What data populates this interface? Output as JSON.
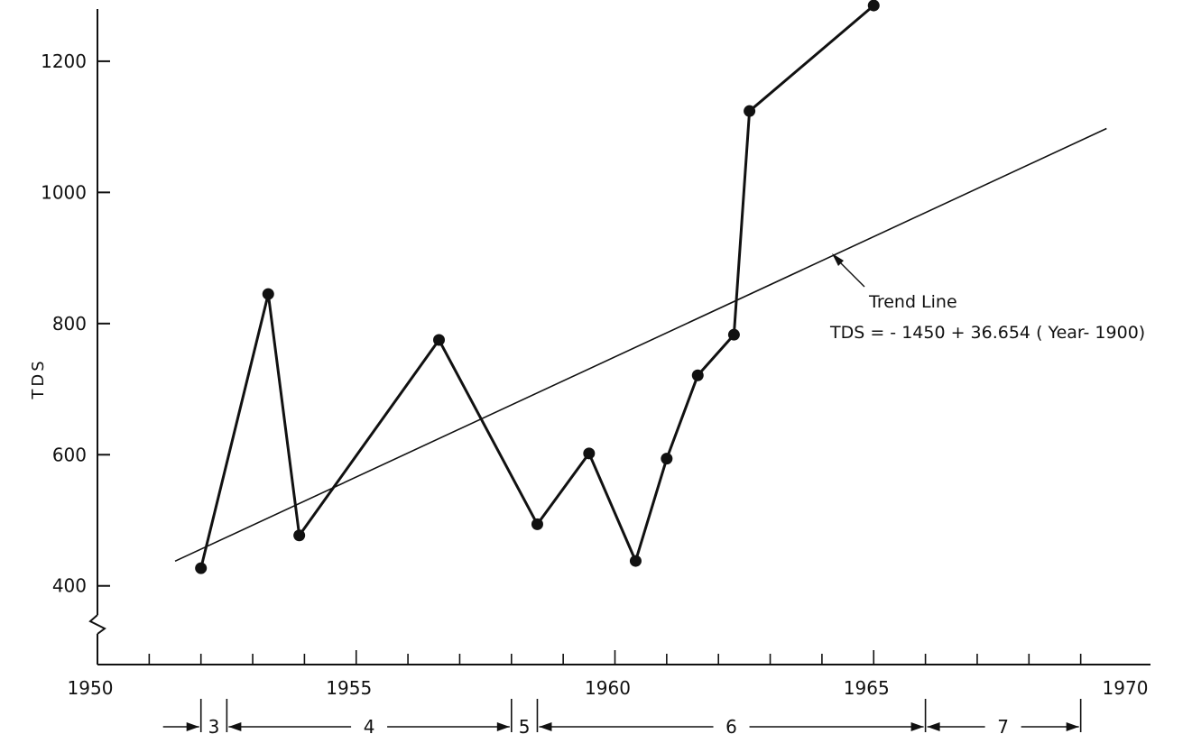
{
  "chart_data": {
    "type": "line",
    "title": "",
    "xlabel": "",
    "ylabel": "TDS",
    "x_ticks": [
      1950,
      1955,
      1960,
      1965,
      1970
    ],
    "y_ticks": [
      400,
      600,
      800,
      1000,
      1200
    ],
    "xlim": [
      1950,
      1970
    ],
    "ylim": [
      280,
      1270
    ],
    "y_axis_broken": true,
    "grid": false,
    "series": [
      {
        "name": "",
        "x": [
          1952.0,
          1953.3,
          1953.9,
          1956.6,
          1958.5,
          1959.5,
          1960.4,
          1961.0,
          1961.6,
          1962.3,
          1962.6,
          1965.0
        ],
        "y": [
          427,
          845,
          477,
          775,
          494,
          602,
          438,
          594,
          721,
          783,
          1124,
          1285
        ]
      }
    ],
    "trend_line": {
      "x_start": 1951.5,
      "x_end": 1969.5,
      "label": "Trend Line",
      "equation": "TDS = - 1450 + 36.654 ( Year- 1900)"
    },
    "periods": [
      {
        "label": "3",
        "start": 1952.0,
        "end": 1952.5
      },
      {
        "label": "4",
        "start": 1952.5,
        "end": 1958.0
      },
      {
        "label": "5",
        "start": 1958.0,
        "end": 1958.5
      },
      {
        "label": "6",
        "start": 1958.5,
        "end": 1966.0
      },
      {
        "label": "7",
        "start": 1966.0,
        "end": 1969.0
      }
    ],
    "colors": {
      "line": "#111111",
      "marker": "#111111",
      "background": "#ffffff"
    }
  }
}
